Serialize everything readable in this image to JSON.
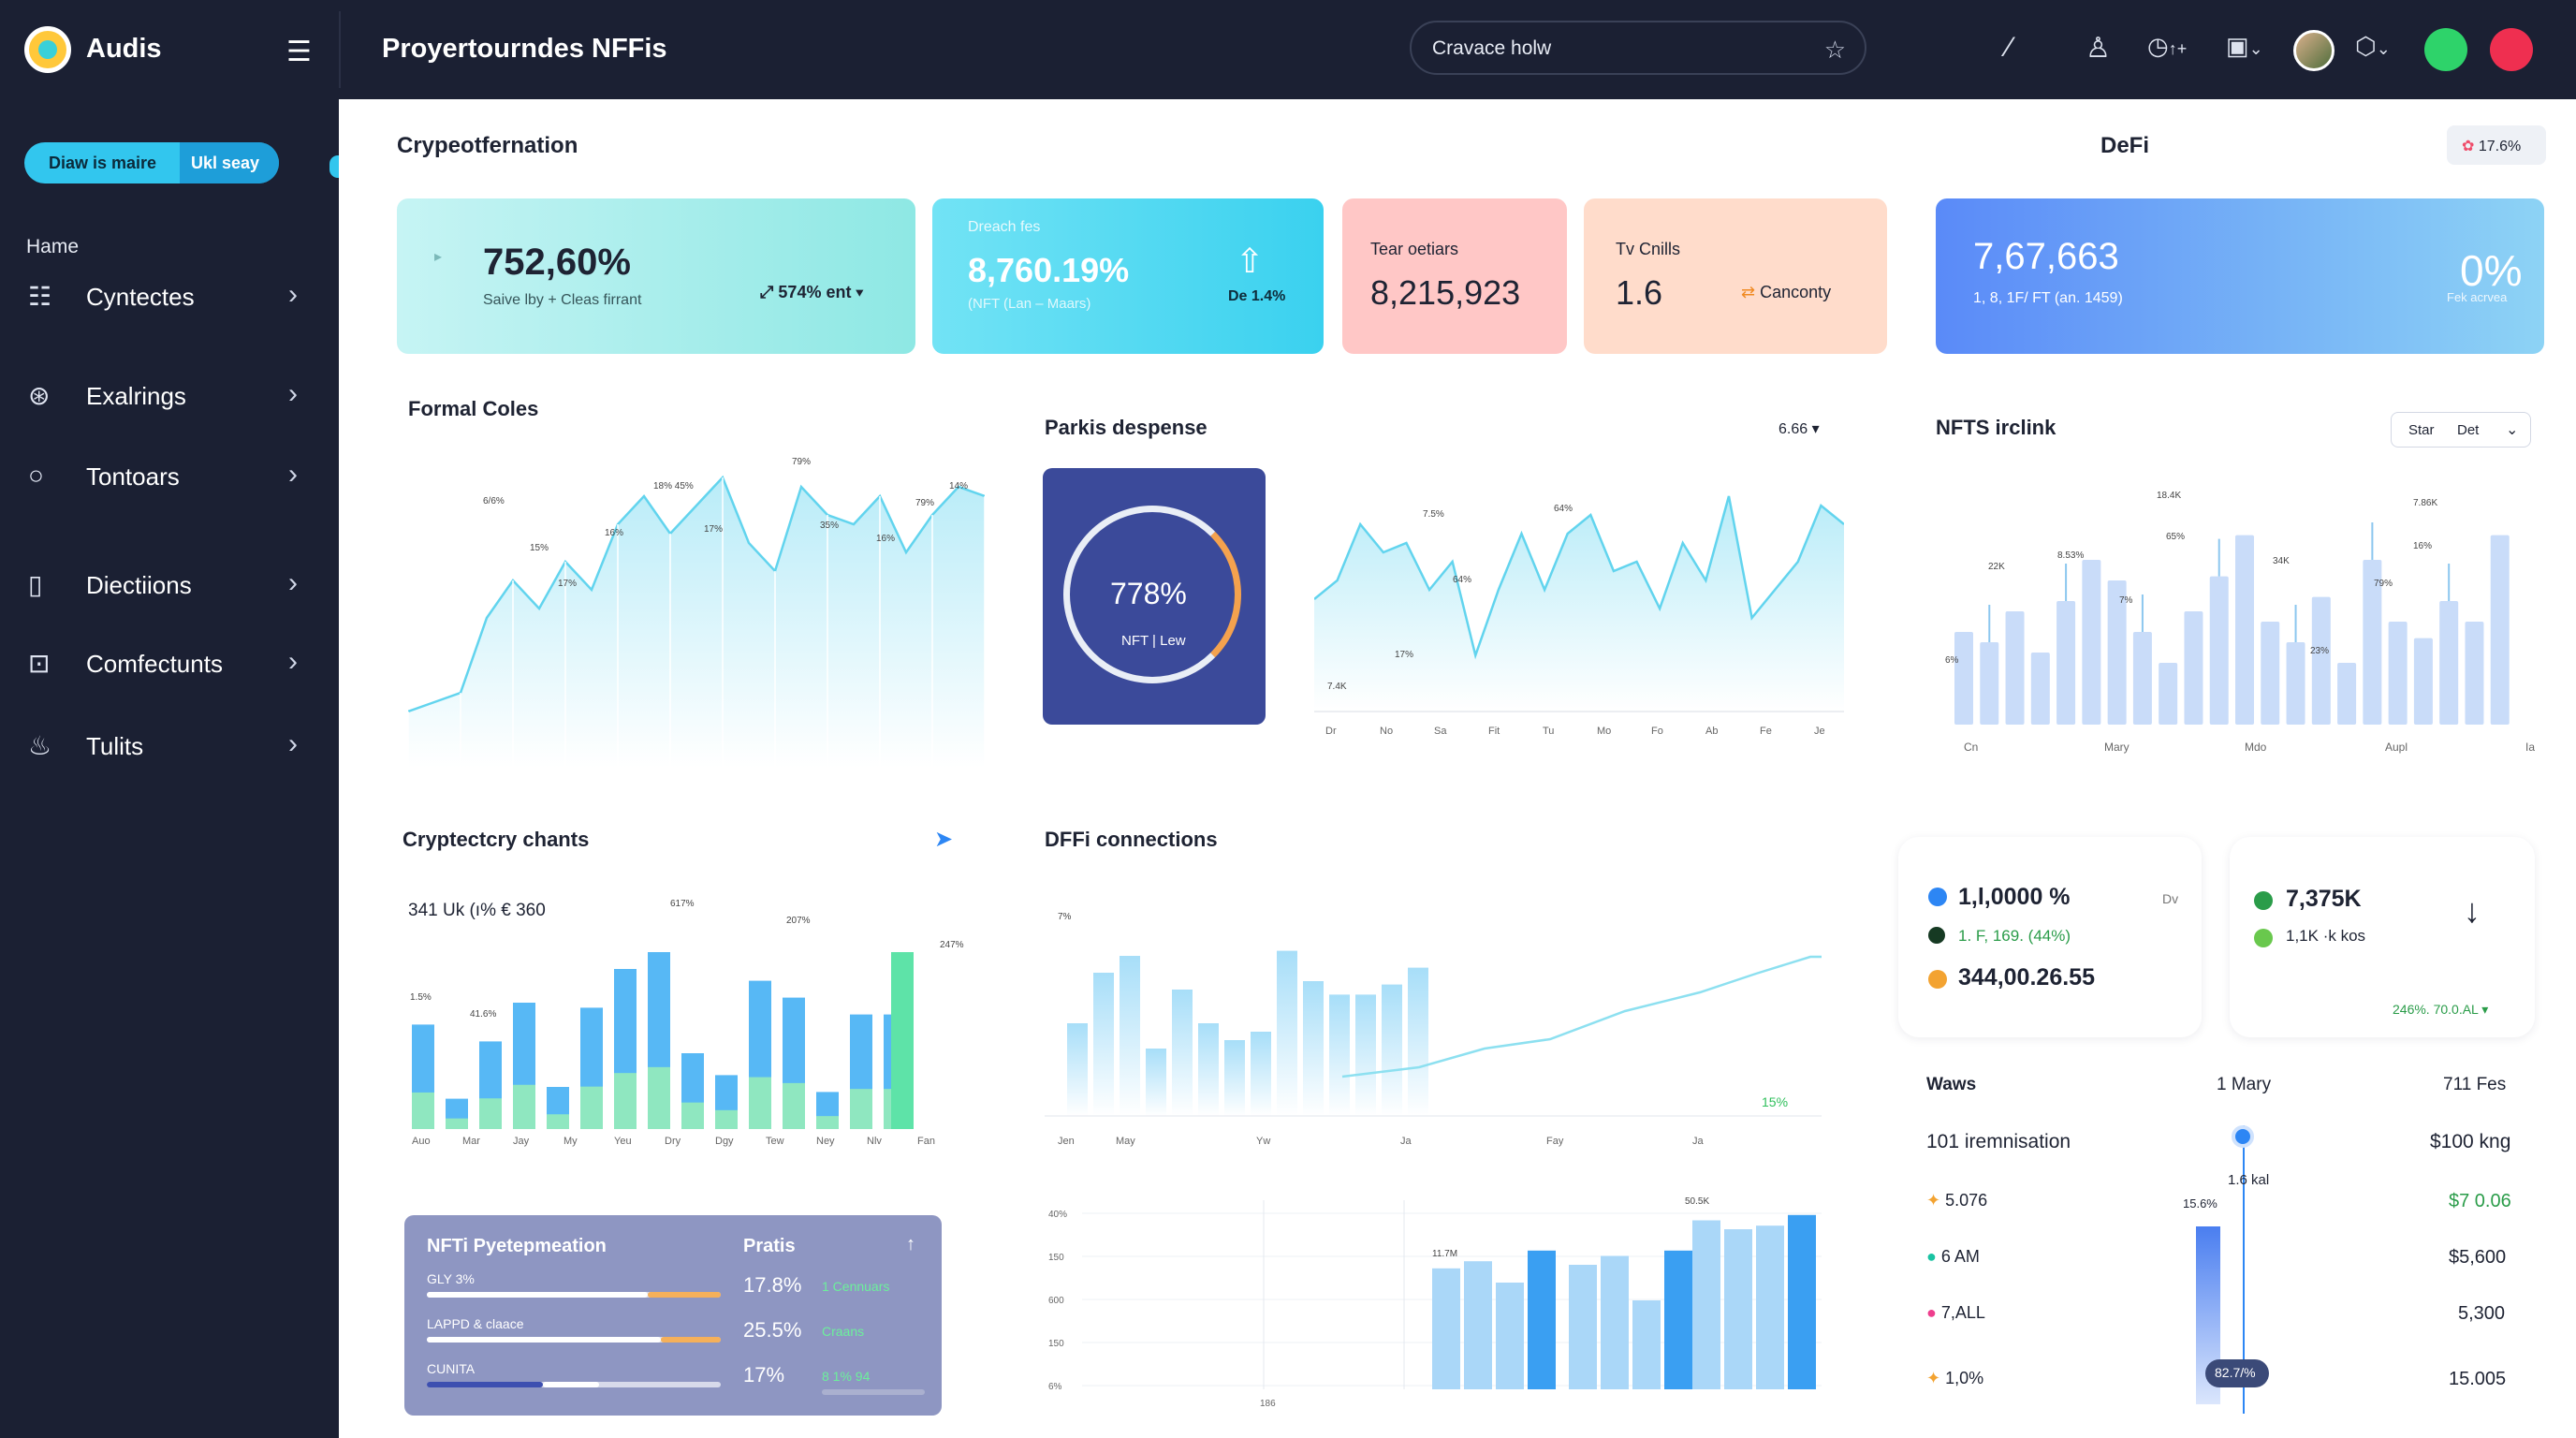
{
  "app": {
    "name": "Audis",
    "page_title": "Proyertourndes NFFis"
  },
  "search": {
    "placeholder": "Cravace holw"
  },
  "topbar_icons": [
    "edit-icon",
    "user-icon",
    "clock-icon",
    "wallet-icon",
    "avatar",
    "shield-icon",
    "spotify-icon",
    "app-icon"
  ],
  "topbar_text": {
    "clock": "↑+",
    "wallet": "⌄",
    "shield": "⌄"
  },
  "sidebar": {
    "pill_left": "Diaw is maire",
    "pill_right": "Ukl seay",
    "home": "Hame",
    "items": [
      {
        "label": "Cyntectes",
        "icon": "list-icon"
      },
      {
        "label": "Exalrings",
        "icon": "coin-icon"
      },
      {
        "label": "Tontoars",
        "icon": "circle-icon"
      },
      {
        "label": "Diectiions",
        "icon": "tablet-icon"
      },
      {
        "label": "Comfectunts",
        "icon": "image-icon"
      },
      {
        "label": "Tulits",
        "icon": "flame-icon"
      }
    ]
  },
  "header": {
    "section_left": "Crypeotfernation",
    "section_right": "DeFi",
    "badge": "17.6%"
  },
  "kpis": [
    {
      "value": "752,60%",
      "sub": "Saive lby + Cleas firrant",
      "delta": "574% ent",
      "colors": [
        "#bdf3f3",
        "#8ee9e6"
      ]
    },
    {
      "title": "Dreach fes",
      "value": "8,760.19%",
      "sub": "(NFT (Lan – Maars)",
      "delta": "De 1.4%",
      "colors": [
        "#6ee0f4",
        "#3fd2f0"
      ]
    },
    {
      "title": "Tear oetiars",
      "value": "8,215,923",
      "colors": [
        "#ffc9c8",
        "#ffb6b7"
      ]
    },
    {
      "title": "Tv Cnills",
      "value": "1.6",
      "delta": "Canconty",
      "colors": [
        "#ffe1cd",
        "#ffd2b7"
      ]
    },
    {
      "value": "7,67,663",
      "sub": "1, 8, 1F/ FT (an. 1459)",
      "right": "0%",
      "right_sub": "Fek acrvea",
      "colors": [
        "#5a8af8",
        "#8dd3f5"
      ]
    }
  ],
  "formal_coles": {
    "title": "Formal Coles",
    "labels": [
      "6/6%",
      "15%",
      "17%",
      "16%",
      "18% 45%",
      "17%",
      "79%",
      "35%",
      "16%",
      "79%",
      "14%"
    ]
  },
  "parkis": {
    "title": "Parkis despense",
    "dropdown": "6.66",
    "gauge_value": "778%",
    "gauge_sub": "NFT | Lew",
    "labels": [
      "7.5%",
      "64%",
      "64%",
      "17%",
      "7.4K"
    ],
    "xlabels": [
      "Dr",
      "No",
      "Sa",
      "Fit",
      "Tu",
      "Mo",
      "Fo",
      "Ab",
      "Fe",
      "Je"
    ]
  },
  "nfts": {
    "title": "NFTS irclink",
    "dropdown_left": "Star",
    "dropdown_right": "Det",
    "labels": [
      "18.4K",
      "22K",
      "8.53%",
      "7%",
      "65%",
      "34K",
      "7.86K",
      "16%",
      "79%",
      "23%",
      "6%"
    ],
    "xlabels": [
      "Cn",
      "Mary",
      "Mdo",
      "Aupl",
      "Ia do"
    ]
  },
  "crypto_chants": {
    "title": "Cryptectcry chants",
    "subtitle": "341 Uk (ı% € 360",
    "labels": [
      "617%",
      "207%",
      "247%",
      "1.5%",
      "41.6%"
    ],
    "xlabels": [
      "Auo",
      "Mar",
      "Jay",
      "My",
      "Yeu",
      "Dry",
      "Dgy",
      "Tew",
      "Ney",
      "Nlv",
      "Fan"
    ]
  },
  "nft_panel": {
    "title": "NFTi Pyetepmeation",
    "right_title": "Pratis",
    "rows": [
      {
        "label": "GLY 3%",
        "value": "17.8%",
        "note": "1 Cennuars",
        "fill": 0.75
      },
      {
        "label": "LAPPD & claace",
        "value": "25.5%",
        "note": "Craans",
        "fill": 0.8
      },
      {
        "label": "CUNITA",
        "value": "17%",
        "note": "8 1% 94",
        "fill": 0.45
      }
    ]
  },
  "defi": {
    "title": "DFFi connections",
    "badge": "15%",
    "xlabels": [
      "Jen",
      "May",
      "Yw",
      "Ja",
      "Fay",
      "Ja"
    ],
    "top_label": "7%",
    "ylabels": [
      "40%",
      "150",
      "600",
      "150",
      "6%"
    ],
    "xlabels2": [
      "",
      "186"
    ],
    "peak": "50.5K",
    "mid": "11.7M"
  },
  "mini1": {
    "a": "1,l,0000 %",
    "a_tag": "Dv",
    "b": "1. F, 169. (44%)",
    "c": "344,00.26.55"
  },
  "mini2": {
    "a": "7,375K",
    "b": "1,1K ·k kos",
    "c": "246%. 70.0.AL"
  },
  "table": {
    "h1": "Waws",
    "h2": "1 Mary",
    "h3": "711 Fes",
    "row0_label": "101 iremnisation",
    "row0_value": "$100 kng",
    "slider_label": "1.6 kal",
    "slider_pct": "15.6%",
    "slider_badge": "82.7/%",
    "rows": [
      {
        "label": "5.076",
        "value": "$7 0.06",
        "color": "#f3a331"
      },
      {
        "label": "6 AM",
        "value": "$5,600",
        "color": "#19c3a2"
      },
      {
        "label": "7,ALL",
        "value": "5,300",
        "color": "#ee3e8d"
      },
      {
        "label": "1,0%",
        "value": "15.005",
        "color": "#f3a331"
      }
    ]
  }
}
